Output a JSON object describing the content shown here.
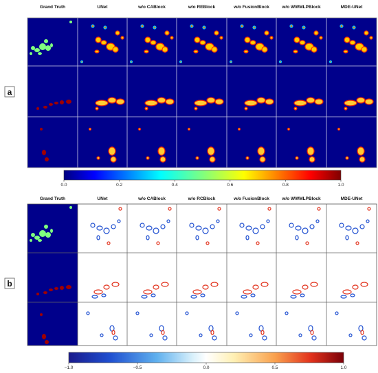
{
  "panels": [
    {
      "label": "a",
      "columns": [
        "Grand Truth",
        "UNet",
        "w/o CABlock",
        "w/o REBlock",
        "w/o FusionBlock",
        "w/o WWMLPBlock",
        "MDE-UNet"
      ],
      "colorbar": {
        "ticks": [
          "0.0",
          "0.2",
          "0.4",
          "0.6",
          "0.8",
          "1.0"
        ]
      }
    },
    {
      "label": "b",
      "columns": [
        "Grand Truth",
        "UNet",
        "w/o CABlock",
        "w/o RCBlock",
        "w/o FusionBlock",
        "w/o WWMLPBlock",
        "MDE-UNet"
      ],
      "colorbar": {
        "ticks": [
          "−1.0",
          "−0.5",
          "0.0",
          "0.5",
          "1.0"
        ]
      }
    }
  ]
}
